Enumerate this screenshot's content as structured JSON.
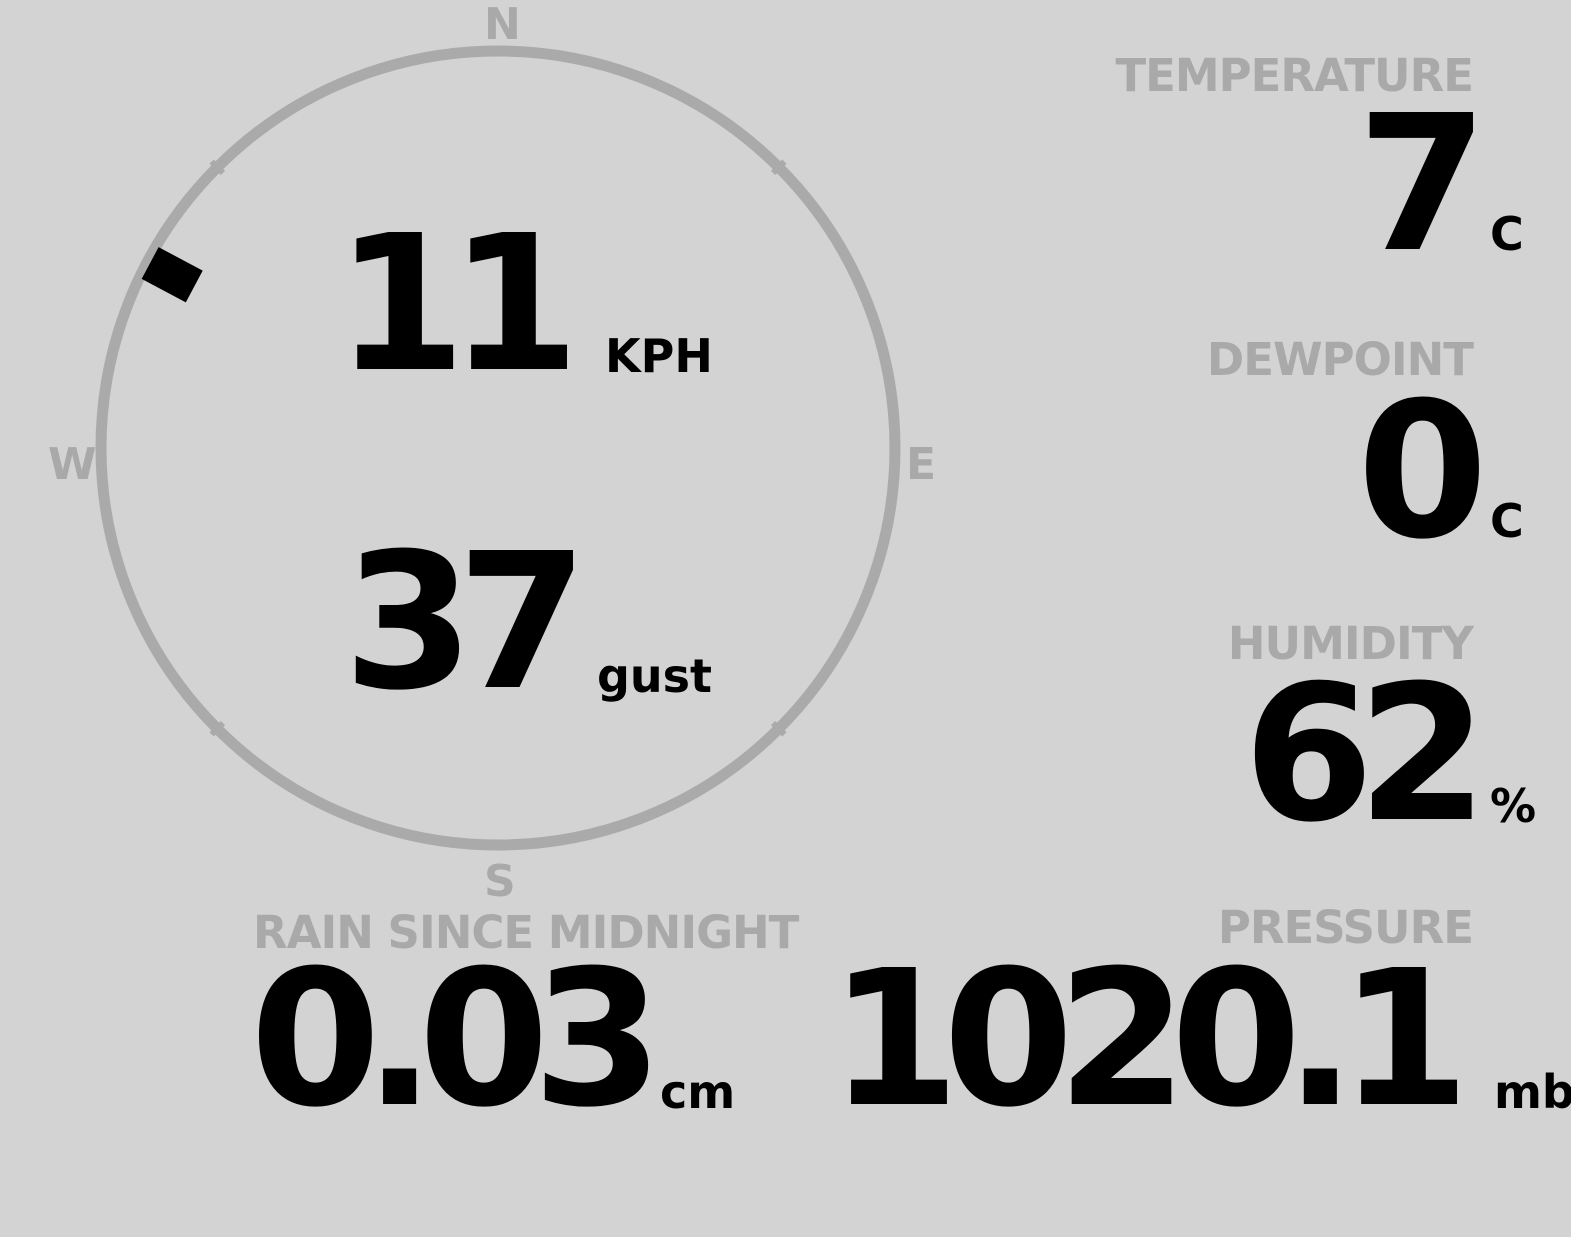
{
  "wind": {
    "speed": "11",
    "speed_unit": "KPH",
    "gust": "37",
    "gust_label": "gust",
    "direction_degrees": 298,
    "cardinals": {
      "n": "N",
      "e": "E",
      "s": "S",
      "w": "W"
    }
  },
  "temperature": {
    "label": "TEMPERATURE",
    "value": "7",
    "unit": "C"
  },
  "dewpoint": {
    "label": "DEWPOINT",
    "value": "0",
    "unit": "C"
  },
  "humidity": {
    "label": "HUMIDITY",
    "value": "62",
    "unit": "%"
  },
  "rain": {
    "label": "RAIN SINCE MIDNIGHT",
    "value": "0.03",
    "unit": "cm"
  },
  "pressure": {
    "label": "PRESSURE",
    "value": "1020.1",
    "unit": "mb"
  },
  "colors": {
    "background": "#d3d3d3",
    "muted": "#a9a9a9",
    "text": "#000000"
  }
}
